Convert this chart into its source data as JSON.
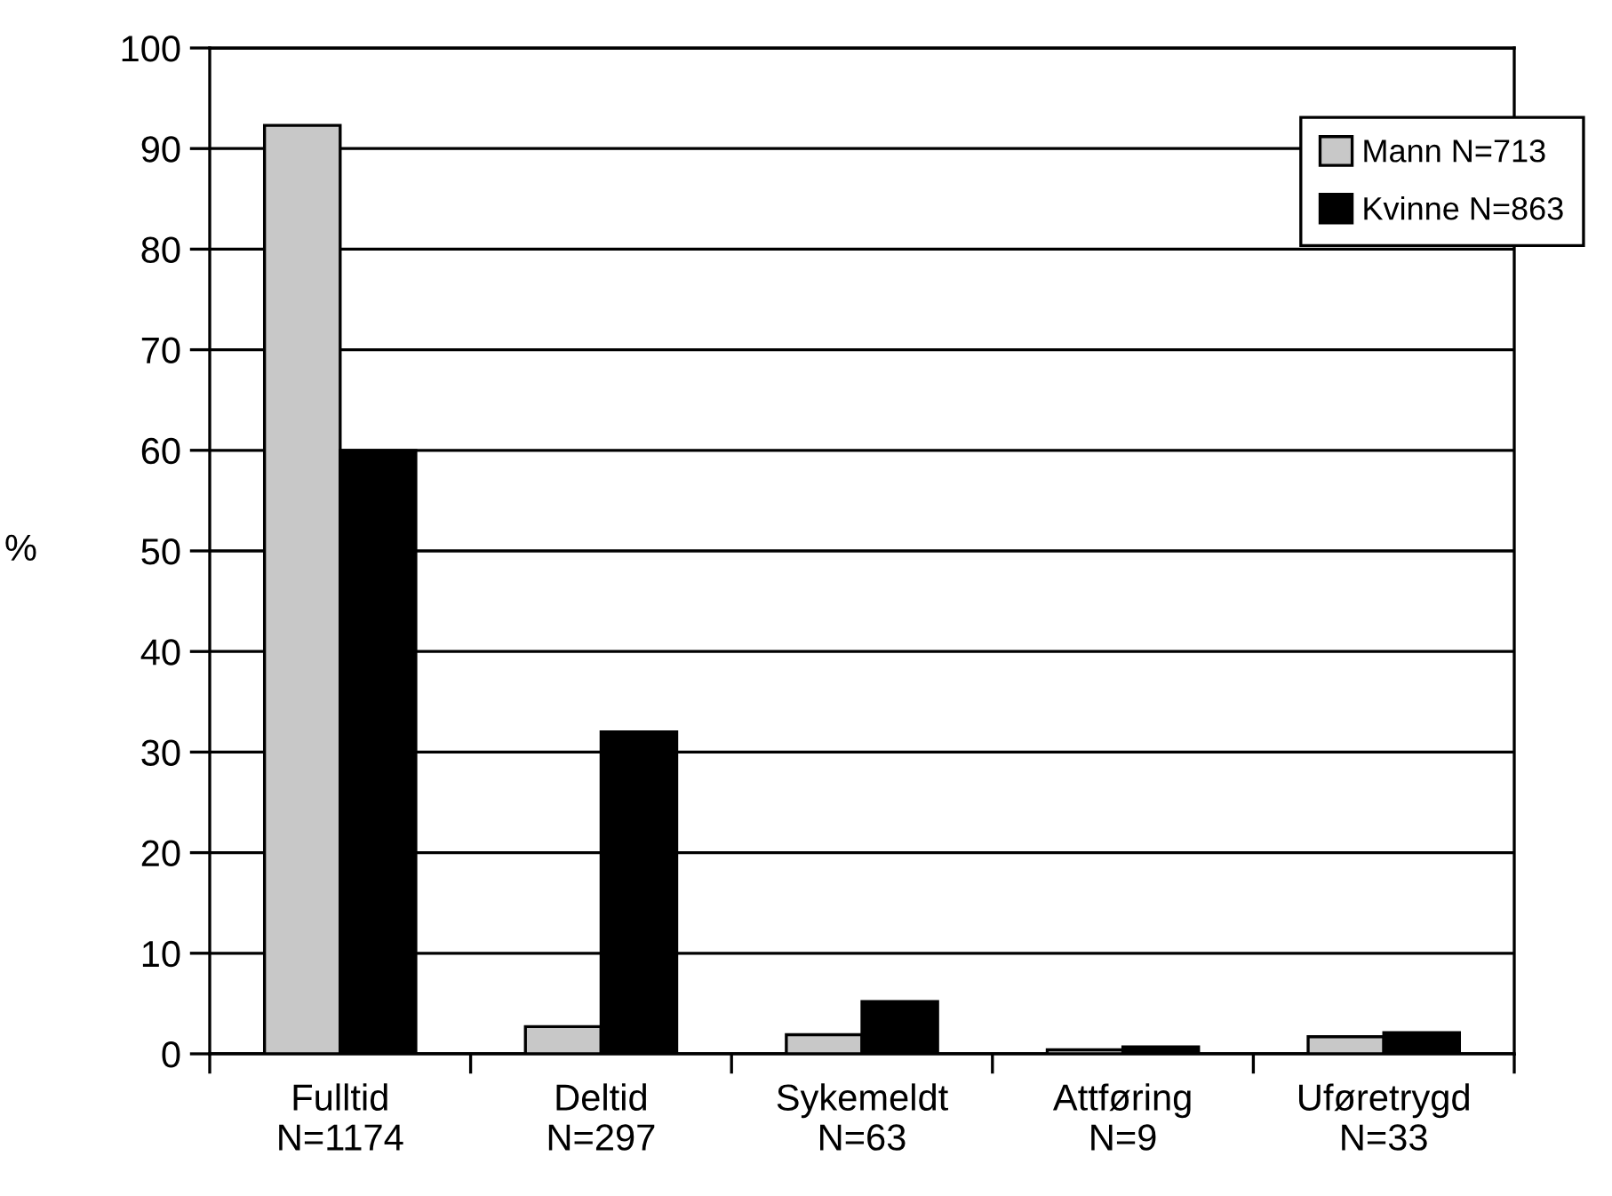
{
  "chart_data": {
    "type": "bar",
    "ylabel": "%",
    "categories": [
      "Fulltid\nN=1174",
      "Deltid\nN=297",
      "Sykemeldt\nN=63",
      "Attføring\nN=9",
      "Uføretrygd\nN=33"
    ],
    "series": [
      {
        "name": "Mann N=713",
        "color": "#c8c8c8",
        "values": [
          92.3,
          2.7,
          1.9,
          0.4,
          1.7
        ]
      },
      {
        "name": "Kvinne N=863",
        "color": "#000000",
        "values": [
          60,
          32,
          5.2,
          0.7,
          2.1
        ]
      }
    ],
    "ylim": [
      0,
      100
    ],
    "yticks": [
      0,
      10,
      20,
      30,
      40,
      50,
      60,
      70,
      80,
      90,
      100
    ],
    "grid": "y",
    "legend": "top right"
  }
}
